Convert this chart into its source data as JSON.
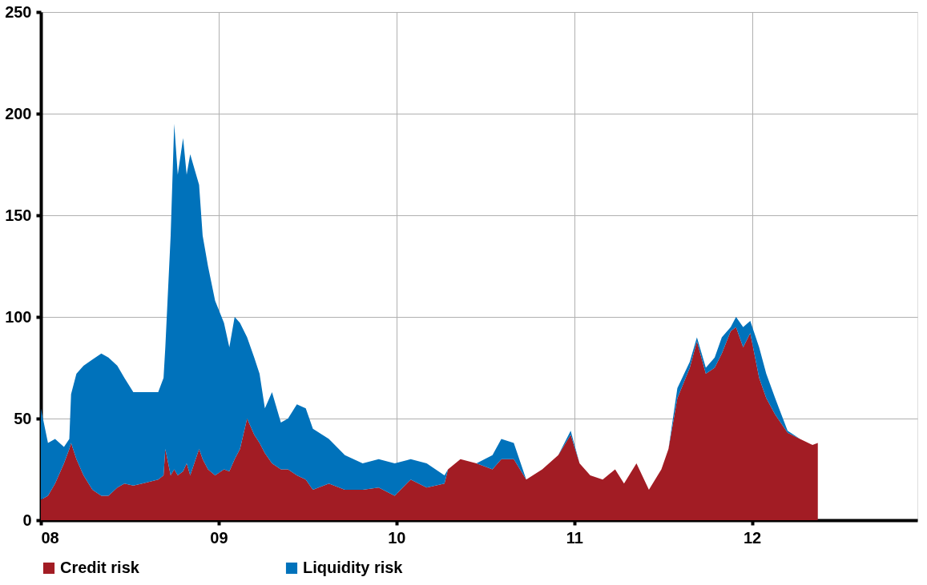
{
  "chart_data": {
    "type": "area",
    "stacked": true,
    "x": [
      2008.0,
      2008.04,
      2008.08,
      2008.13,
      2008.16,
      2008.17,
      2008.2,
      2008.24,
      2008.29,
      2008.34,
      2008.38,
      2008.43,
      2008.47,
      2008.52,
      2008.57,
      2008.66,
      2008.69,
      2008.7,
      2008.73,
      2008.75,
      2008.77,
      2008.8,
      2008.82,
      2008.84,
      2008.89,
      2008.91,
      2008.94,
      2008.98,
      2009.03,
      2009.06,
      2009.09,
      2009.12,
      2009.16,
      2009.2,
      2009.23,
      2009.26,
      2009.3,
      2009.35,
      2009.39,
      2009.44,
      2009.49,
      2009.53,
      2009.62,
      2009.71,
      2009.81,
      2009.9,
      2009.99,
      2010.08,
      2010.17,
      2010.27,
      2010.29,
      2010.36,
      2010.45,
      2010.54,
      2010.59,
      2010.66,
      2010.73,
      2010.82,
      2010.91,
      2010.98,
      2011.03,
      2011.09,
      2011.16,
      2011.23,
      2011.28,
      2011.35,
      2011.42,
      2011.49,
      2011.53,
      2011.58,
      2011.65,
      2011.69,
      2011.74,
      2011.79,
      2011.83,
      2011.88,
      2011.91,
      2011.95,
      2011.99,
      2012.04,
      2012.08,
      2012.13,
      2012.2,
      2012.27,
      2012.34,
      2012.37
    ],
    "series": [
      {
        "name": "Credit risk",
        "color": "#a21c24",
        "values": [
          10,
          12,
          18,
          28,
          35,
          38,
          30,
          22,
          15,
          12,
          12,
          16,
          18,
          17,
          18,
          20,
          22,
          35,
          22,
          25,
          22,
          24,
          28,
          22,
          35,
          30,
          25,
          22,
          25,
          24,
          30,
          35,
          50,
          42,
          38,
          33,
          28,
          25,
          25,
          22,
          20,
          15,
          18,
          15,
          15,
          16,
          12,
          20,
          16,
          18,
          25,
          30,
          28,
          25,
          30,
          30,
          20,
          25,
          32,
          42,
          28,
          22,
          20,
          25,
          18,
          28,
          15,
          25,
          35,
          60,
          75,
          88,
          72,
          75,
          82,
          93,
          95,
          85,
          92,
          70,
          60,
          52,
          43,
          40,
          37,
          38
        ]
      },
      {
        "name": "Liquidity risk",
        "color": "#0072bb",
        "values": [
          45,
          26,
          22,
          8,
          5,
          24,
          42,
          54,
          64,
          70,
          68,
          60,
          52,
          46,
          45,
          43,
          48,
          50,
          118,
          170,
          148,
          164,
          142,
          158,
          130,
          110,
          100,
          86,
          72,
          61,
          70,
          62,
          40,
          38,
          34,
          22,
          35,
          23,
          25,
          35,
          35,
          30,
          22,
          17,
          13,
          14,
          16,
          10,
          12,
          4,
          0,
          0,
          0,
          7,
          10,
          8,
          0,
          0,
          0,
          2,
          0,
          0,
          0,
          0,
          0,
          0,
          0,
          0,
          0,
          5,
          3,
          2,
          3,
          5,
          8,
          2,
          5,
          10,
          6,
          15,
          12,
          8,
          1,
          0,
          0,
          0
        ]
      }
    ],
    "xlim": [
      2008.0,
      2012.93
    ],
    "xticks": [
      {
        "value": 2008,
        "label": "08"
      },
      {
        "value": 2009,
        "label": "09"
      },
      {
        "value": 2010,
        "label": "10"
      },
      {
        "value": 2011,
        "label": "11"
      },
      {
        "value": 2012,
        "label": "12"
      }
    ],
    "ylim": [
      0,
      250
    ],
    "yticks": [
      0,
      50,
      100,
      150,
      200,
      250
    ],
    "grid": true,
    "legend": "bottom"
  }
}
